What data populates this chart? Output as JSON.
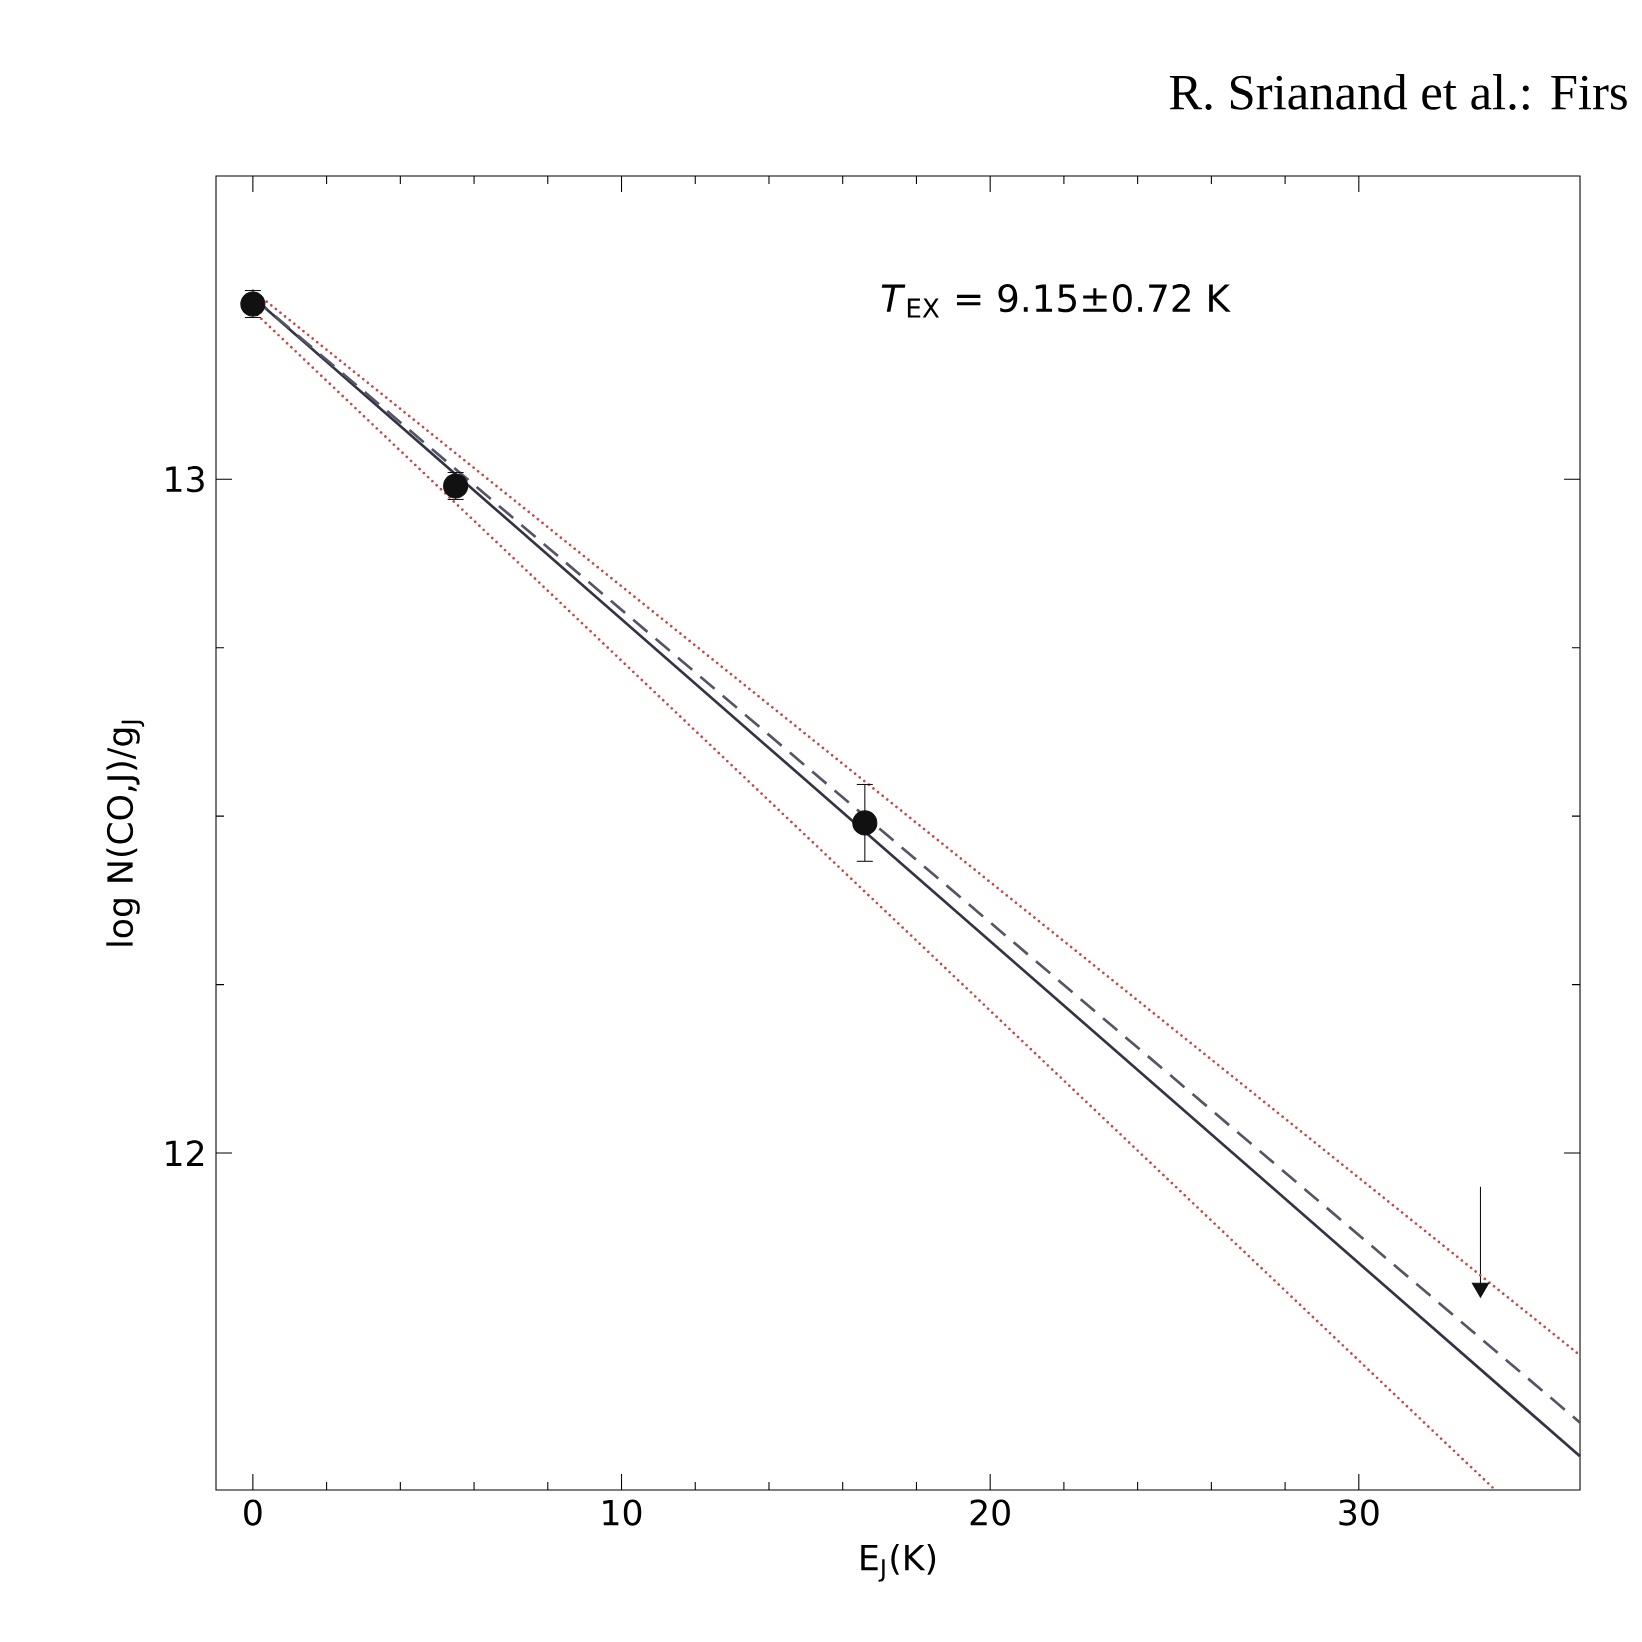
{
  "chart_data": {
    "type": "scatter",
    "xlabel": "E$_{J}$(K)",
    "ylabel": "log N(CO,J)/g$_{J}$",
    "annotations": [
      "R. Srianand et al.: Firs",
      "*T*$_{EX}$ = 9.15±0.72 K"
    ],
    "xlim": [
      -1,
      36
    ],
    "ylim": [
      11.5,
      13.45
    ],
    "xticks": [
      0,
      10,
      20,
      30
    ],
    "yticks": [
      12,
      13
    ],
    "grid": false,
    "series": [
      {
        "type": "scatter",
        "color": "#111111",
        "marker": "circle",
        "x": [
          0,
          5.5,
          16.6
        ],
        "values": [
          13.26,
          12.99,
          12.49
        ],
        "errors": [
          0.02,
          0.02,
          0.057
        ]
      },
      {
        "type": "scatter",
        "color": "#111111",
        "marker": "triangle",
        "x": [
          33.3
        ],
        "values": [
          11.8
        ],
        "errors": [
          [
            11.8,
            11.95
          ]
        ]
      },
      {
        "type": "line",
        "color": "#333344",
        "line_style": "solid",
        "x": [
          0,
          36
        ],
        "values": [
          13.27,
          11.55
        ]
      },
      {
        "type": "line",
        "color": "#555566",
        "line_style": "dashed",
        "x": [
          0,
          36
        ],
        "values": [
          13.27,
          11.6
        ]
      },
      {
        "type": "line",
        "color": "#cc4444",
        "line_style": "dotted",
        "x": [
          0,
          36
        ],
        "values": [
          13.28,
          11.7
        ]
      },
      {
        "type": "line",
        "color": "#cc4444",
        "line_style": "dotted",
        "x": [
          0,
          33.7
        ],
        "values": [
          13.25,
          11.5
        ]
      }
    ]
  }
}
